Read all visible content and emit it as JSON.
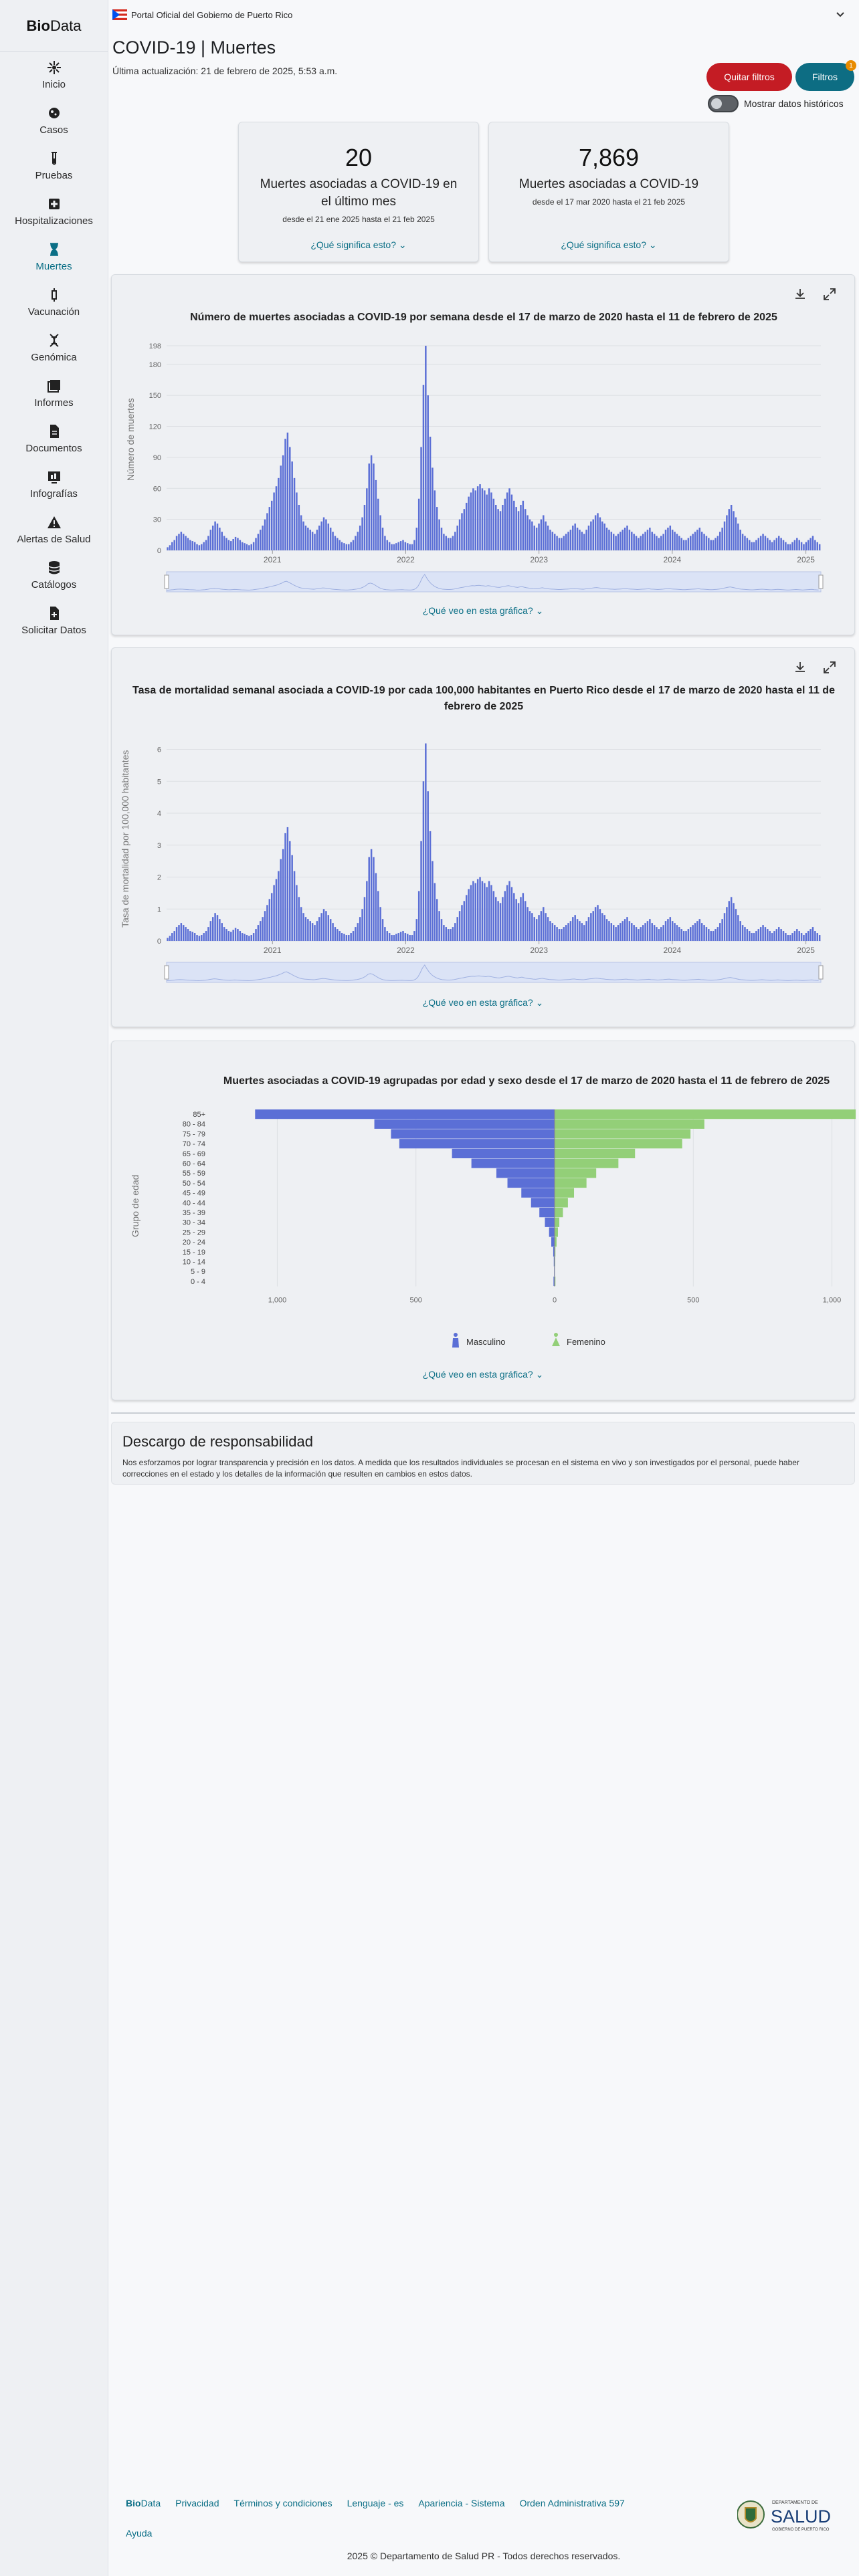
{
  "brand": {
    "bold": "Bio",
    "rest": "Data"
  },
  "sidebar": {
    "items": [
      {
        "label": "Inicio",
        "icon": "home-icon"
      },
      {
        "label": "Casos",
        "icon": "virus-icon"
      },
      {
        "label": "Pruebas",
        "icon": "test-tube-icon"
      },
      {
        "label": "Hospitalizaciones",
        "icon": "hospital-icon"
      },
      {
        "label": "Muertes",
        "icon": "hourglass-icon"
      },
      {
        "label": "Vacunación",
        "icon": "syringe-icon"
      },
      {
        "label": "Genómica",
        "icon": "dna-icon"
      },
      {
        "label": "Informes",
        "icon": "reports-icon"
      },
      {
        "label": "Documentos",
        "icon": "document-icon"
      },
      {
        "label": "Infografías",
        "icon": "infographic-icon"
      },
      {
        "label": "Alertas de Salud",
        "icon": "alert-icon"
      },
      {
        "label": "Catálogos",
        "icon": "database-icon"
      },
      {
        "label": "Solicitar Datos",
        "icon": "request-icon"
      }
    ]
  },
  "gov_banner": "Portal Oficial del Gobierno de Puerto Rico",
  "header": {
    "title": "COVID-19 | Muertes",
    "updated": "Última actualización: 21 de febrero de 2025, 5:53 a.m.",
    "clear_filters": "Quitar filtros",
    "filters": "Filtros",
    "filter_badge": "1",
    "historic_toggle": "Mostrar datos históricos"
  },
  "stats": [
    {
      "value": "20",
      "label": "Muertes asociadas a COVID-19 en el último mes",
      "range": "desde el 21 ene 2025 hasta el 21 feb 2025",
      "link": "¿Qué significa esto?"
    },
    {
      "value": "7,869",
      "label": "Muertes asociadas a COVID-19",
      "range": "desde el 17 mar 2020 hasta el 21 feb 2025",
      "link": "¿Qué significa esto?"
    }
  ],
  "chart_data": [
    {
      "type": "bar",
      "title": "Número de muertes asociadas a COVID-19 por semana desde el 17 de marzo de 2020 hasta el 11 de febrero de 2025",
      "ylabel": "Número de muertes",
      "yticks": [
        "0",
        "30",
        "60",
        "90",
        "120",
        "150",
        "180",
        "198"
      ],
      "xticks": [
        "2021",
        "2022",
        "2023",
        "2024",
        "2025"
      ],
      "ylim": [
        0,
        198
      ],
      "x_start": "2020-03-17",
      "x_end": "2025-02-11",
      "values": [
        3,
        5,
        8,
        10,
        14,
        16,
        18,
        16,
        14,
        12,
        10,
        9,
        8,
        6,
        5,
        6,
        8,
        10,
        14,
        20,
        24,
        28,
        26,
        22,
        18,
        14,
        12,
        10,
        9,
        11,
        13,
        12,
        10,
        8,
        7,
        6,
        5,
        6,
        8,
        12,
        16,
        20,
        24,
        30,
        36,
        42,
        48,
        56,
        62,
        70,
        82,
        92,
        108,
        114,
        100,
        86,
        70,
        56,
        44,
        34,
        28,
        24,
        22,
        20,
        18,
        16,
        20,
        24,
        28,
        32,
        30,
        26,
        22,
        18,
        14,
        12,
        10,
        8,
        7,
        6,
        6,
        8,
        10,
        14,
        18,
        24,
        32,
        44,
        60,
        84,
        92,
        84,
        68,
        50,
        34,
        22,
        14,
        10,
        8,
        6,
        6,
        7,
        8,
        9,
        10,
        8,
        7,
        6,
        6,
        10,
        22,
        50,
        100,
        160,
        198,
        150,
        110,
        80,
        58,
        42,
        30,
        22,
        16,
        14,
        12,
        12,
        14,
        18,
        24,
        30,
        36,
        40,
        46,
        52,
        56,
        60,
        58,
        62,
        64,
        60,
        58,
        54,
        60,
        56,
        50,
        44,
        40,
        38,
        44,
        50,
        56,
        60,
        54,
        48,
        42,
        38,
        44,
        48,
        40,
        34,
        30,
        28,
        24,
        22,
        26,
        30,
        34,
        28,
        24,
        20,
        18,
        16,
        14,
        12,
        12,
        14,
        16,
        18,
        20,
        24,
        26,
        22,
        20,
        18,
        16,
        20,
        24,
        28,
        30,
        34,
        36,
        32,
        28,
        26,
        22,
        20,
        18,
        16,
        14,
        16,
        18,
        20,
        22,
        24,
        20,
        18,
        16,
        14,
        12,
        14,
        16,
        18,
        20,
        22,
        18,
        16,
        14,
        12,
        14,
        16,
        20,
        22,
        24,
        20,
        18,
        16,
        14,
        12,
        10,
        10,
        12,
        14,
        16,
        18,
        20,
        22,
        18,
        16,
        14,
        12,
        10,
        10,
        12,
        14,
        18,
        22,
        28,
        34,
        40,
        44,
        38,
        32,
        26,
        20,
        16,
        14,
        12,
        10,
        8,
        8,
        10,
        12,
        14,
        16,
        14,
        12,
        10,
        8,
        10,
        12,
        14,
        12,
        10,
        8,
        6,
        6,
        8,
        10,
        12,
        10,
        8,
        6,
        8,
        10,
        12,
        14,
        10,
        8,
        6
      ]
    },
    {
      "type": "bar",
      "title": "Tasa de mortalidad semanal asociada a COVID-19 por cada 100,000 habitantes en Puerto Rico desde el 17 de marzo de 2020 hasta el 11 de febrero de 2025",
      "ylabel": "Tasa de mortalidad por 100,000 habitantes",
      "yticks": [
        "0",
        "1",
        "2",
        "3",
        "4",
        "5",
        "6"
      ],
      "xticks": [
        "2021",
        "2022",
        "2023",
        "2024",
        "2025"
      ],
      "ylim": [
        0,
        6.2
      ],
      "x_start": "2020-03-17",
      "x_end": "2025-02-11",
      "scale_note": "rate per 100,000"
    },
    {
      "type": "bar",
      "orientation": "horizontal",
      "title": "Muertes asociadas a COVID-19 agrupadas por edad y sexo desde el 17 de marzo de 2020 hasta el 11 de febrero de 2025",
      "ylabel": "Grupo de edad",
      "categories": [
        "85+",
        "80 - 84",
        "75 - 79",
        "70 - 74",
        "65 - 69",
        "60 - 64",
        "55 - 59",
        "50 - 54",
        "45 - 49",
        "40 - 44",
        "35 - 39",
        "30 - 34",
        "25 - 29",
        "20 - 24",
        "15 - 19",
        "10 - 14",
        "5 - 9",
        "0 - 4"
      ],
      "xticks": [
        "1,000",
        "500",
        "0",
        "500",
        "1,000"
      ],
      "xlim": [
        -1100,
        1100
      ],
      "series": [
        {
          "name": "Masculino",
          "color": "#5b6fd6",
          "values": [
            1080,
            650,
            590,
            560,
            370,
            300,
            210,
            170,
            120,
            85,
            55,
            35,
            20,
            12,
            5,
            3,
            2,
            4
          ]
        },
        {
          "name": "Femenino",
          "color": "#93cf78",
          "values": [
            1110,
            540,
            490,
            460,
            290,
            230,
            150,
            115,
            70,
            48,
            30,
            17,
            12,
            7,
            3,
            2,
            1,
            3
          ]
        }
      ]
    }
  ],
  "chart_links": {
    "what": "¿Qué veo en esta gráfica?"
  },
  "disclaimer": {
    "title": "Descargo de responsabilidad",
    "text": "Nos esforzamos por lograr transparencia y precisión en los datos. A medida que los resultados individuales se procesan en el sistema en vivo y son investigados por el personal, puede haber correcciones en el estado y los detalles de la información que resulten en cambios en estos datos."
  },
  "footer": {
    "brand_bold": "Bio",
    "brand_rest": "Data",
    "links": [
      "Privacidad",
      "Términos y condiciones",
      "Lenguaje - es",
      "Apariencia - Sistema",
      "Orden Administrativa 597"
    ],
    "help": "Ayuda",
    "copyright": "2025 © Departamento de Salud PR - Todos derechos reservados.",
    "logo_text": "SALUD",
    "logo_top": "DEPARTAMENTO DE",
    "logo_bottom": "GOBIERNO DE PUERTO RICO"
  },
  "colors": {
    "bar": "#5b6fd6",
    "teal": "#0d6d83",
    "red": "#c41c24",
    "male": "#5b6fd6",
    "female": "#93cf78"
  }
}
